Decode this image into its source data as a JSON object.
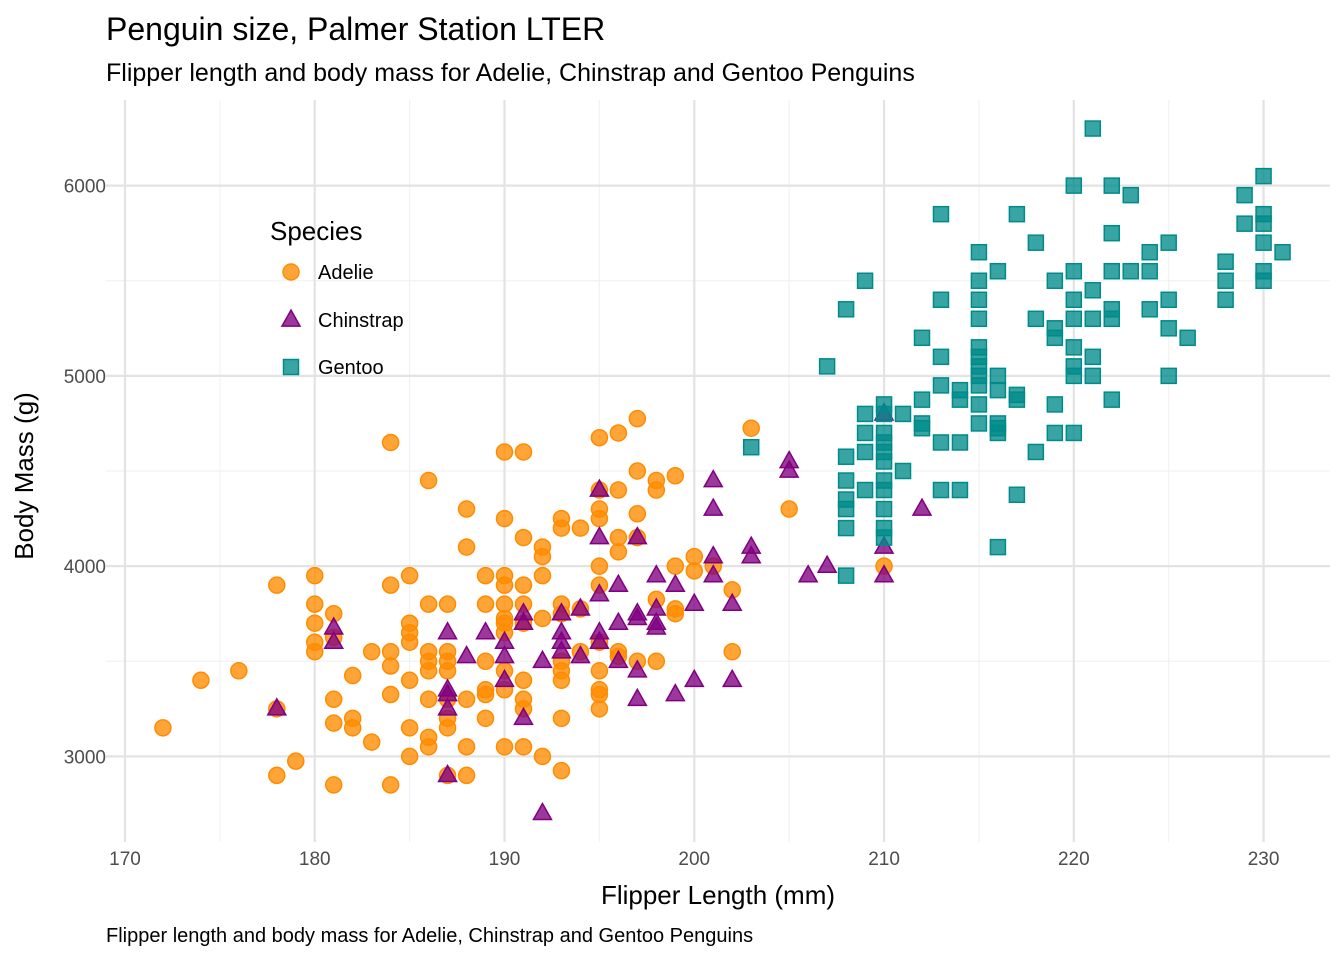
{
  "chart_data": {
    "type": "scatter",
    "title": "Penguin size, Palmer Station LTER",
    "subtitle": "Flipper length and body mass for Adelie, Chinstrap and Gentoo Penguins",
    "caption": "Flipper length and body mass for Adelie, Chinstrap and Gentoo Penguins",
    "xlabel": "Flipper Length (mm)",
    "ylabel": "Body Mass (g)",
    "xlim": [
      169,
      233.5
    ],
    "ylim": [
      2550,
      6450
    ],
    "x_ticks": [
      170,
      180,
      190,
      200,
      210,
      220,
      230
    ],
    "y_ticks": [
      3000,
      4000,
      5000,
      6000
    ],
    "grid": true,
    "legend": {
      "title": "Species",
      "placement": "inside-top-left"
    },
    "series": [
      {
        "name": "Adelie",
        "marker": "circle",
        "color": "#FF8C00",
        "points": [
          [
            172,
            3150
          ],
          [
            174,
            3400
          ],
          [
            176,
            3450
          ],
          [
            178,
            3900
          ],
          [
            178,
            3250
          ],
          [
            178,
            2900
          ],
          [
            179,
            2975
          ],
          [
            180,
            3950
          ],
          [
            180,
            3800
          ],
          [
            180,
            3700
          ],
          [
            180,
            3600
          ],
          [
            180,
            3550
          ],
          [
            181,
            3750
          ],
          [
            181,
            3625
          ],
          [
            181,
            3300
          ],
          [
            181,
            3175
          ],
          [
            181,
            2850
          ],
          [
            182,
            3425
          ],
          [
            182,
            3200
          ],
          [
            182,
            3150
          ],
          [
            183,
            3550
          ],
          [
            183,
            3075
          ],
          [
            184,
            4650
          ],
          [
            184,
            3900
          ],
          [
            184,
            3550
          ],
          [
            184,
            3475
          ],
          [
            184,
            3325
          ],
          [
            184,
            2850
          ],
          [
            185,
            3950
          ],
          [
            185,
            3700
          ],
          [
            185,
            3650
          ],
          [
            185,
            3600
          ],
          [
            185,
            3400
          ],
          [
            185,
            3150
          ],
          [
            185,
            3000
          ],
          [
            186,
            4450
          ],
          [
            186,
            3800
          ],
          [
            186,
            3550
          ],
          [
            186,
            3500
          ],
          [
            186,
            3450
          ],
          [
            186,
            3300
          ],
          [
            186,
            3100
          ],
          [
            186,
            3050
          ],
          [
            187,
            3800
          ],
          [
            187,
            3550
          ],
          [
            187,
            3500
          ],
          [
            187,
            3450
          ],
          [
            187,
            3300
          ],
          [
            187,
            3200
          ],
          [
            187,
            3150
          ],
          [
            187,
            2900
          ],
          [
            188,
            4300
          ],
          [
            188,
            4100
          ],
          [
            188,
            3300
          ],
          [
            188,
            3050
          ],
          [
            188,
            2900
          ],
          [
            189,
            3950
          ],
          [
            189,
            3800
          ],
          [
            189,
            3500
          ],
          [
            189,
            3350
          ],
          [
            189,
            3325
          ],
          [
            189,
            3200
          ],
          [
            190,
            4600
          ],
          [
            190,
            4250
          ],
          [
            190,
            3950
          ],
          [
            190,
            3900
          ],
          [
            190,
            3800
          ],
          [
            190,
            3725
          ],
          [
            190,
            3700
          ],
          [
            190,
            3650
          ],
          [
            190,
            3450
          ],
          [
            190,
            3350
          ],
          [
            190,
            3050
          ],
          [
            191,
            4600
          ],
          [
            191,
            4150
          ],
          [
            191,
            3900
          ],
          [
            191,
            3800
          ],
          [
            191,
            3700
          ],
          [
            191,
            3400
          ],
          [
            191,
            3300
          ],
          [
            191,
            3250
          ],
          [
            191,
            3050
          ],
          [
            192,
            4100
          ],
          [
            192,
            4050
          ],
          [
            192,
            3950
          ],
          [
            192,
            3725
          ],
          [
            192,
            3000
          ],
          [
            193,
            4250
          ],
          [
            193,
            4200
          ],
          [
            193,
            3800
          ],
          [
            193,
            3750
          ],
          [
            193,
            3500
          ],
          [
            193,
            3450
          ],
          [
            193,
            3400
          ],
          [
            193,
            3200
          ],
          [
            193,
            2925
          ],
          [
            194,
            4200
          ],
          [
            194,
            3775
          ],
          [
            194,
            3550
          ],
          [
            195,
            4675
          ],
          [
            195,
            4400
          ],
          [
            195,
            4300
          ],
          [
            195,
            4250
          ],
          [
            195,
            4000
          ],
          [
            195,
            3900
          ],
          [
            195,
            3600
          ],
          [
            195,
            3450
          ],
          [
            195,
            3350
          ],
          [
            195,
            3325
          ],
          [
            195,
            3250
          ],
          [
            196,
            4700
          ],
          [
            196,
            4400
          ],
          [
            196,
            4150
          ],
          [
            196,
            4075
          ],
          [
            196,
            3550
          ],
          [
            196,
            3525
          ],
          [
            197,
            4775
          ],
          [
            197,
            4500
          ],
          [
            197,
            4275
          ],
          [
            197,
            4150
          ],
          [
            197,
            3500
          ],
          [
            198,
            4450
          ],
          [
            198,
            4400
          ],
          [
            198,
            3825
          ],
          [
            198,
            3500
          ],
          [
            199,
            4475
          ],
          [
            199,
            4000
          ],
          [
            199,
            3775
          ],
          [
            199,
            3750
          ],
          [
            200,
            4050
          ],
          [
            200,
            3975
          ],
          [
            201,
            4000
          ],
          [
            202,
            3875
          ],
          [
            202,
            3550
          ],
          [
            203,
            4725
          ],
          [
            205,
            4300
          ],
          [
            210,
            4000
          ]
        ]
      },
      {
        "name": "Chinstrap",
        "marker": "triangle",
        "color": "#800080",
        "points": [
          [
            178,
            3250
          ],
          [
            181,
            3675
          ],
          [
            181,
            3600
          ],
          [
            187,
            3650
          ],
          [
            187,
            3350
          ],
          [
            187,
            3325
          ],
          [
            187,
            3250
          ],
          [
            187,
            2900
          ],
          [
            188,
            3525
          ],
          [
            189,
            3650
          ],
          [
            190,
            3600
          ],
          [
            190,
            3525
          ],
          [
            190,
            3400
          ],
          [
            191,
            3750
          ],
          [
            191,
            3700
          ],
          [
            191,
            3200
          ],
          [
            192,
            3500
          ],
          [
            192,
            2700
          ],
          [
            193,
            3650
          ],
          [
            193,
            3600
          ],
          [
            193,
            3550
          ],
          [
            193,
            3750
          ],
          [
            194,
            3525
          ],
          [
            194,
            3775
          ],
          [
            195,
            4400
          ],
          [
            195,
            4150
          ],
          [
            195,
            3850
          ],
          [
            195,
            3650
          ],
          [
            195,
            3600
          ],
          [
            196,
            3900
          ],
          [
            196,
            3700
          ],
          [
            196,
            3500
          ],
          [
            197,
            4150
          ],
          [
            197,
            3750
          ],
          [
            197,
            3725
          ],
          [
            197,
            3450
          ],
          [
            197,
            3300
          ],
          [
            198,
            3950
          ],
          [
            198,
            3775
          ],
          [
            198,
            3700
          ],
          [
            198,
            3675
          ],
          [
            199,
            3900
          ],
          [
            199,
            3325
          ],
          [
            200,
            3800
          ],
          [
            200,
            3400
          ],
          [
            201,
            4450
          ],
          [
            201,
            4300
          ],
          [
            201,
            4050
          ],
          [
            201,
            3950
          ],
          [
            202,
            3800
          ],
          [
            202,
            3400
          ],
          [
            203,
            4100
          ],
          [
            203,
            4050
          ],
          [
            205,
            4550
          ],
          [
            205,
            4500
          ],
          [
            206,
            3950
          ],
          [
            207,
            4000
          ],
          [
            210,
            4800
          ],
          [
            210,
            4100
          ],
          [
            210,
            3950
          ],
          [
            212,
            4300
          ]
        ]
      },
      {
        "name": "Gentoo",
        "marker": "square",
        "color": "#008B8B",
        "points": [
          [
            203,
            4625
          ],
          [
            207,
            5050
          ],
          [
            208,
            5350
          ],
          [
            208,
            4575
          ],
          [
            208,
            4450
          ],
          [
            208,
            4350
          ],
          [
            208,
            4300
          ],
          [
            208,
            4200
          ],
          [
            208,
            3950
          ],
          [
            209,
            5500
          ],
          [
            209,
            4800
          ],
          [
            209,
            4700
          ],
          [
            209,
            4600
          ],
          [
            209,
            4400
          ],
          [
            210,
            4850
          ],
          [
            210,
            4800
          ],
          [
            210,
            4700
          ],
          [
            210,
            4650
          ],
          [
            210,
            4600
          ],
          [
            210,
            4550
          ],
          [
            210,
            4450
          ],
          [
            210,
            4400
          ],
          [
            210,
            4300
          ],
          [
            210,
            4200
          ],
          [
            210,
            4150
          ],
          [
            211,
            4800
          ],
          [
            211,
            4500
          ],
          [
            212,
            5200
          ],
          [
            212,
            4875
          ],
          [
            212,
            4750
          ],
          [
            212,
            4725
          ],
          [
            213,
            5850
          ],
          [
            213,
            5400
          ],
          [
            213,
            5100
          ],
          [
            213,
            4950
          ],
          [
            213,
            4650
          ],
          [
            213,
            4400
          ],
          [
            214,
            4925
          ],
          [
            214,
            4875
          ],
          [
            214,
            4650
          ],
          [
            214,
            4400
          ],
          [
            215,
            5650
          ],
          [
            215,
            5500
          ],
          [
            215,
            5400
          ],
          [
            215,
            5300
          ],
          [
            215,
            5150
          ],
          [
            215,
            5100
          ],
          [
            215,
            5050
          ],
          [
            215,
            5000
          ],
          [
            215,
            4950
          ],
          [
            215,
            4850
          ],
          [
            215,
            4750
          ],
          [
            216,
            5550
          ],
          [
            216,
            5000
          ],
          [
            216,
            4925
          ],
          [
            216,
            4750
          ],
          [
            216,
            4725
          ],
          [
            216,
            4700
          ],
          [
            216,
            4100
          ],
          [
            217,
            5850
          ],
          [
            217,
            4900
          ],
          [
            217,
            4875
          ],
          [
            217,
            4375
          ],
          [
            218,
            5700
          ],
          [
            218,
            5300
          ],
          [
            218,
            4600
          ],
          [
            219,
            5500
          ],
          [
            219,
            5250
          ],
          [
            219,
            5200
          ],
          [
            219,
            4850
          ],
          [
            219,
            4700
          ],
          [
            220,
            6000
          ],
          [
            220,
            5550
          ],
          [
            220,
            5400
          ],
          [
            220,
            5300
          ],
          [
            220,
            5150
          ],
          [
            220,
            5050
          ],
          [
            220,
            5000
          ],
          [
            220,
            4700
          ],
          [
            221,
            6300
          ],
          [
            221,
            5450
          ],
          [
            221,
            5300
          ],
          [
            221,
            5100
          ],
          [
            221,
            5000
          ],
          [
            222,
            6000
          ],
          [
            222,
            5750
          ],
          [
            222,
            5550
          ],
          [
            222,
            5350
          ],
          [
            222,
            5300
          ],
          [
            222,
            4875
          ],
          [
            223,
            5950
          ],
          [
            223,
            5550
          ],
          [
            224,
            5650
          ],
          [
            224,
            5550
          ],
          [
            224,
            5350
          ],
          [
            225,
            5700
          ],
          [
            225,
            5400
          ],
          [
            225,
            5250
          ],
          [
            225,
            5000
          ],
          [
            226,
            5200
          ],
          [
            228,
            5600
          ],
          [
            228,
            5500
          ],
          [
            228,
            5400
          ],
          [
            229,
            5950
          ],
          [
            229,
            5800
          ],
          [
            230,
            6050
          ],
          [
            230,
            5850
          ],
          [
            230,
            5800
          ],
          [
            230,
            5700
          ],
          [
            230,
            5550
          ],
          [
            230,
            5500
          ],
          [
            231,
            5650
          ]
        ]
      }
    ]
  }
}
